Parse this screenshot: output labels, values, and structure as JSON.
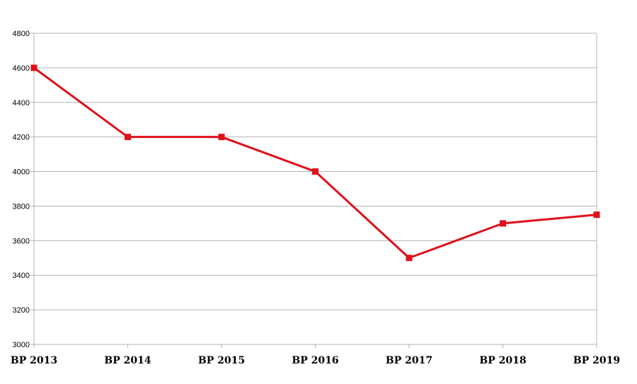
{
  "colors": {
    "series": "#e0101a",
    "grid": "#b3b3b3",
    "axis": "#b3b3b3",
    "background": "#ffffff"
  },
  "chart_data": {
    "type": "line",
    "title": "",
    "xlabel": "",
    "ylabel": "",
    "categories": [
      "BP 2013",
      "BP 2014",
      "BP 2015",
      "BP 2016",
      "BP 2017",
      "BP 2018",
      "BP 2019"
    ],
    "series": [
      {
        "values": [
          4600,
          4200,
          4200,
          4000,
          3500,
          3700,
          3750
        ]
      }
    ],
    "ylim": [
      3000,
      4800
    ],
    "yticks": [
      3000,
      3200,
      3400,
      3600,
      3800,
      4000,
      4200,
      4400,
      4600,
      4800
    ],
    "ytick_labels": [
      "3000",
      "3200",
      "3400",
      "3600",
      "3800",
      "4000",
      "4200",
      "4400",
      "4600",
      "4800"
    ],
    "grid": true,
    "legend": "none",
    "marker": "square"
  }
}
